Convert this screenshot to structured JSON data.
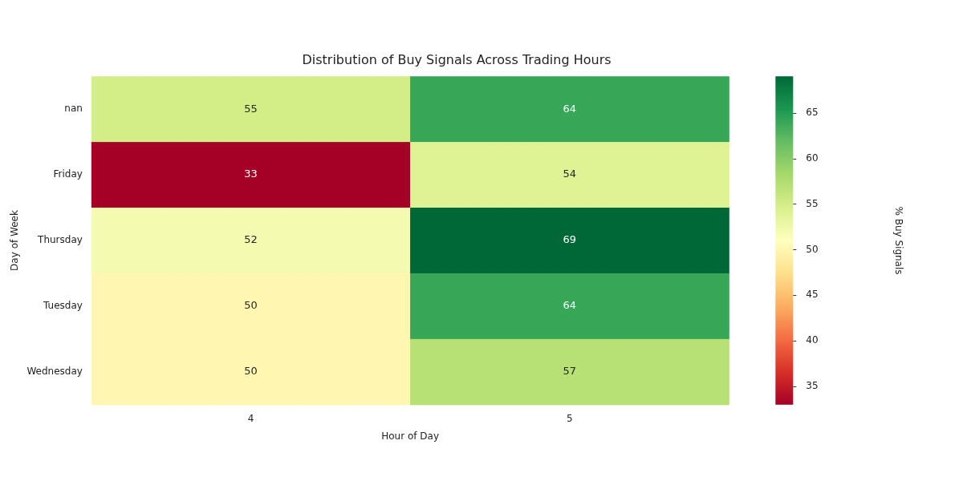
{
  "chart_data": {
    "type": "heatmap",
    "title": "Distribution of Buy Signals Across Trading Hours",
    "x_label": "Hour of Day",
    "y_label": "Day of Week",
    "x_categories": [
      "4",
      "5"
    ],
    "y_categories": [
      "nan",
      "Friday",
      "Thursday",
      "Tuesday",
      "Wednesday"
    ],
    "cells": [
      [
        55,
        64
      ],
      [
        33,
        54
      ],
      [
        52,
        69
      ],
      [
        50,
        64
      ],
      [
        50,
        57
      ]
    ],
    "color": "RdYlGn",
    "data_labels": true,
    "colorbar": {
      "label": "% Buy Signals",
      "range": [
        33,
        69
      ],
      "ticks": [
        35,
        40,
        45,
        50,
        55,
        60,
        65
      ]
    }
  }
}
